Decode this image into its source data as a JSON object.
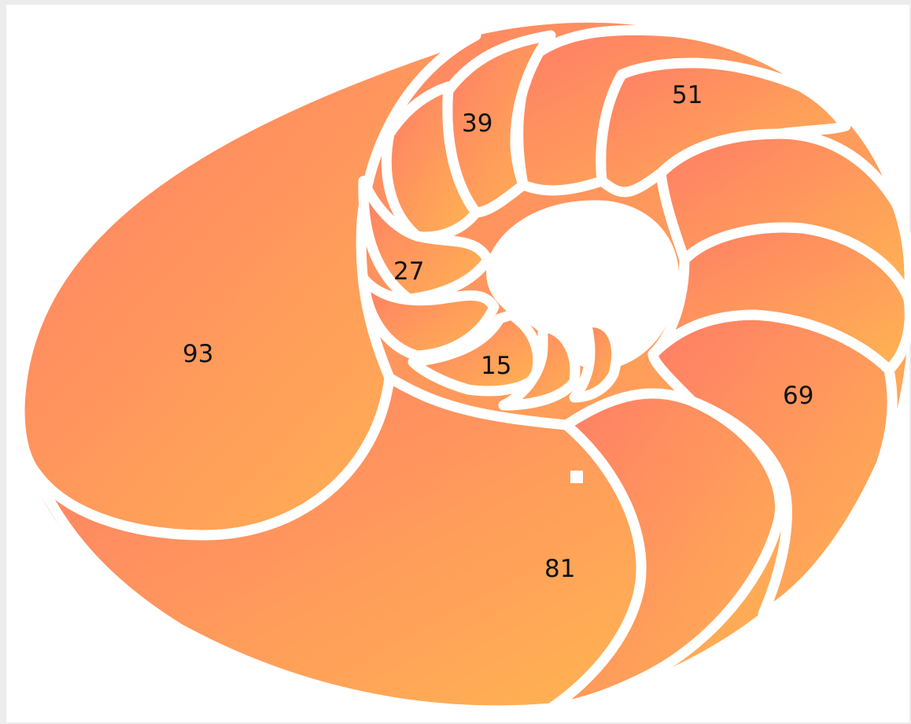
{
  "colors": {
    "page_background": "#ececec",
    "panel_background": "#ffffff",
    "chamber_gradient_start": "#ff7d66",
    "chamber_gradient_end": "#ffb452",
    "separator": "#ffffff",
    "label_text": "#111111"
  },
  "labels": {
    "chamber_93": "93",
    "chamber_81": "81",
    "chamber_69": "69",
    "chamber_51": "51",
    "chamber_39": "39",
    "chamber_27": "27",
    "chamber_15": "15"
  }
}
